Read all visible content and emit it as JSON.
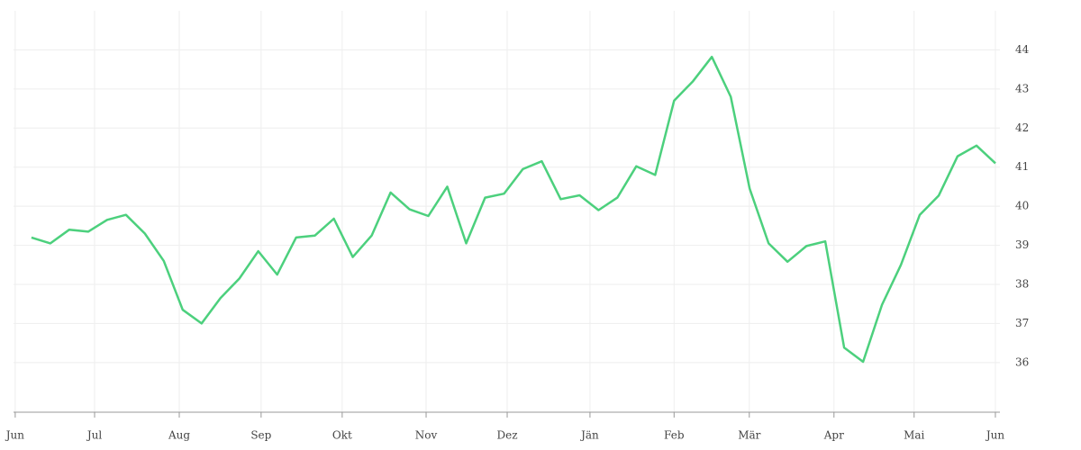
{
  "chart_data": {
    "type": "line",
    "x": [
      0,
      1,
      2,
      3,
      4,
      5,
      6,
      7,
      8,
      9,
      10,
      11,
      12,
      13,
      14,
      15,
      16,
      17,
      18,
      19,
      20,
      21,
      22,
      23,
      24,
      25,
      26,
      27,
      28,
      29,
      30,
      31,
      32,
      33,
      34,
      35,
      36,
      37,
      38,
      39,
      40,
      41,
      42,
      43,
      44,
      45,
      46,
      47,
      48,
      49,
      50,
      51
    ],
    "series": [
      {
        "color": "#4cd07d",
        "values": [
          39.2,
          39.05,
          39.4,
          39.35,
          39.65,
          39.78,
          39.3,
          38.6,
          37.35,
          37.0,
          37.65,
          38.15,
          38.85,
          38.25,
          39.2,
          39.25,
          39.68,
          38.7,
          39.25,
          40.35,
          39.92,
          39.75,
          40.5,
          39.05,
          40.22,
          40.32,
          40.95,
          41.15,
          40.18,
          40.28,
          39.9,
          40.22,
          41.02,
          40.8,
          42.7,
          43.2,
          43.82,
          42.8,
          40.45,
          39.05,
          38.58,
          38.98,
          39.1,
          36.38,
          36.02,
          37.48,
          38.5,
          39.78,
          40.27,
          41.28,
          41.55,
          41.1
        ]
      }
    ],
    "xlim": [
      -0.95,
      51.24
    ],
    "xticks": [
      {
        "value": -0.86,
        "label": "Jun"
      },
      {
        "value": 3.34,
        "label": "Jul"
      },
      {
        "value": 7.82,
        "label": "Aug"
      },
      {
        "value": 12.15,
        "label": "Sep"
      },
      {
        "value": 16.44,
        "label": "Okt"
      },
      {
        "value": 20.88,
        "label": "Nov"
      },
      {
        "value": 25.17,
        "label": "Dez"
      },
      {
        "value": 29.55,
        "label": "Jän"
      },
      {
        "value": 34.0,
        "label": "Feb"
      },
      {
        "value": 37.98,
        "label": "Mär"
      },
      {
        "value": 42.46,
        "label": "Apr"
      },
      {
        "value": 46.7,
        "label": "Mai"
      },
      {
        "value": 51.0,
        "label": "Jun"
      }
    ],
    "ylim": [
      34.73,
      45.0
    ],
    "yticks": [
      36,
      37,
      38,
      39,
      40,
      41,
      42,
      43,
      44
    ],
    "grid": true
  }
}
